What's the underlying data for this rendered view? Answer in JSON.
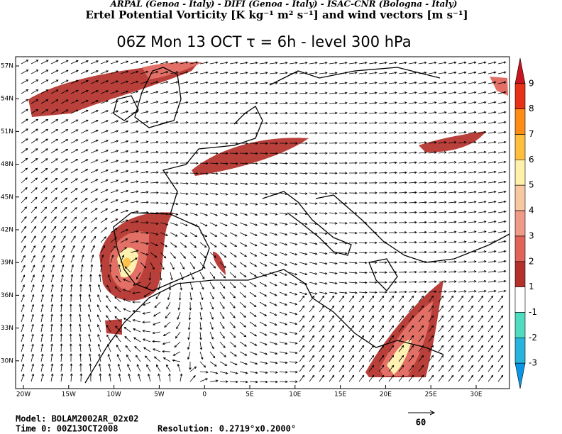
{
  "header": {
    "institutions": "ARPAL (Genoa - Italy)  -  DIFI (Genoa - Italy)  -  ISAC-CNR (Bologna - Italy)",
    "field": "Ertel Potential Vorticity [K kg⁻¹ m² s⁻¹] and wind vectors [m s⁻¹]",
    "title": "06Z Mon 13 OCT  τ = 6h  -  level 300 hPa"
  },
  "map": {
    "lat_labels": [
      "57N",
      "54N",
      "51N",
      "48N",
      "45N",
      "42N",
      "39N",
      "36N",
      "33N",
      "30N"
    ],
    "lon_labels": [
      "20W",
      "15W",
      "10W",
      "5W",
      "0",
      "5E",
      "10E",
      "15E",
      "20E",
      "25E",
      "30E"
    ]
  },
  "legend": {
    "labels": [
      9,
      8,
      7,
      6,
      5,
      4,
      3,
      2,
      1,
      -1,
      -2,
      -3
    ],
    "colors": [
      "#c8141e",
      "#e83218",
      "#ff8c14",
      "#ffbe3c",
      "#fff0aa",
      "#f8c8a0",
      "#f09a88",
      "#e0645a",
      "#b4302a",
      "#ffffff",
      "#50dcc0",
      "#28b4dc",
      "#0a96e6"
    ]
  },
  "footer": {
    "model": "Model: BOLAM2002AR_02x02",
    "time": "Time 0: 00Z13OCT2008",
    "resolution": "Resolution: 0.2719°x0.2000°",
    "reference_vector": "60"
  }
}
